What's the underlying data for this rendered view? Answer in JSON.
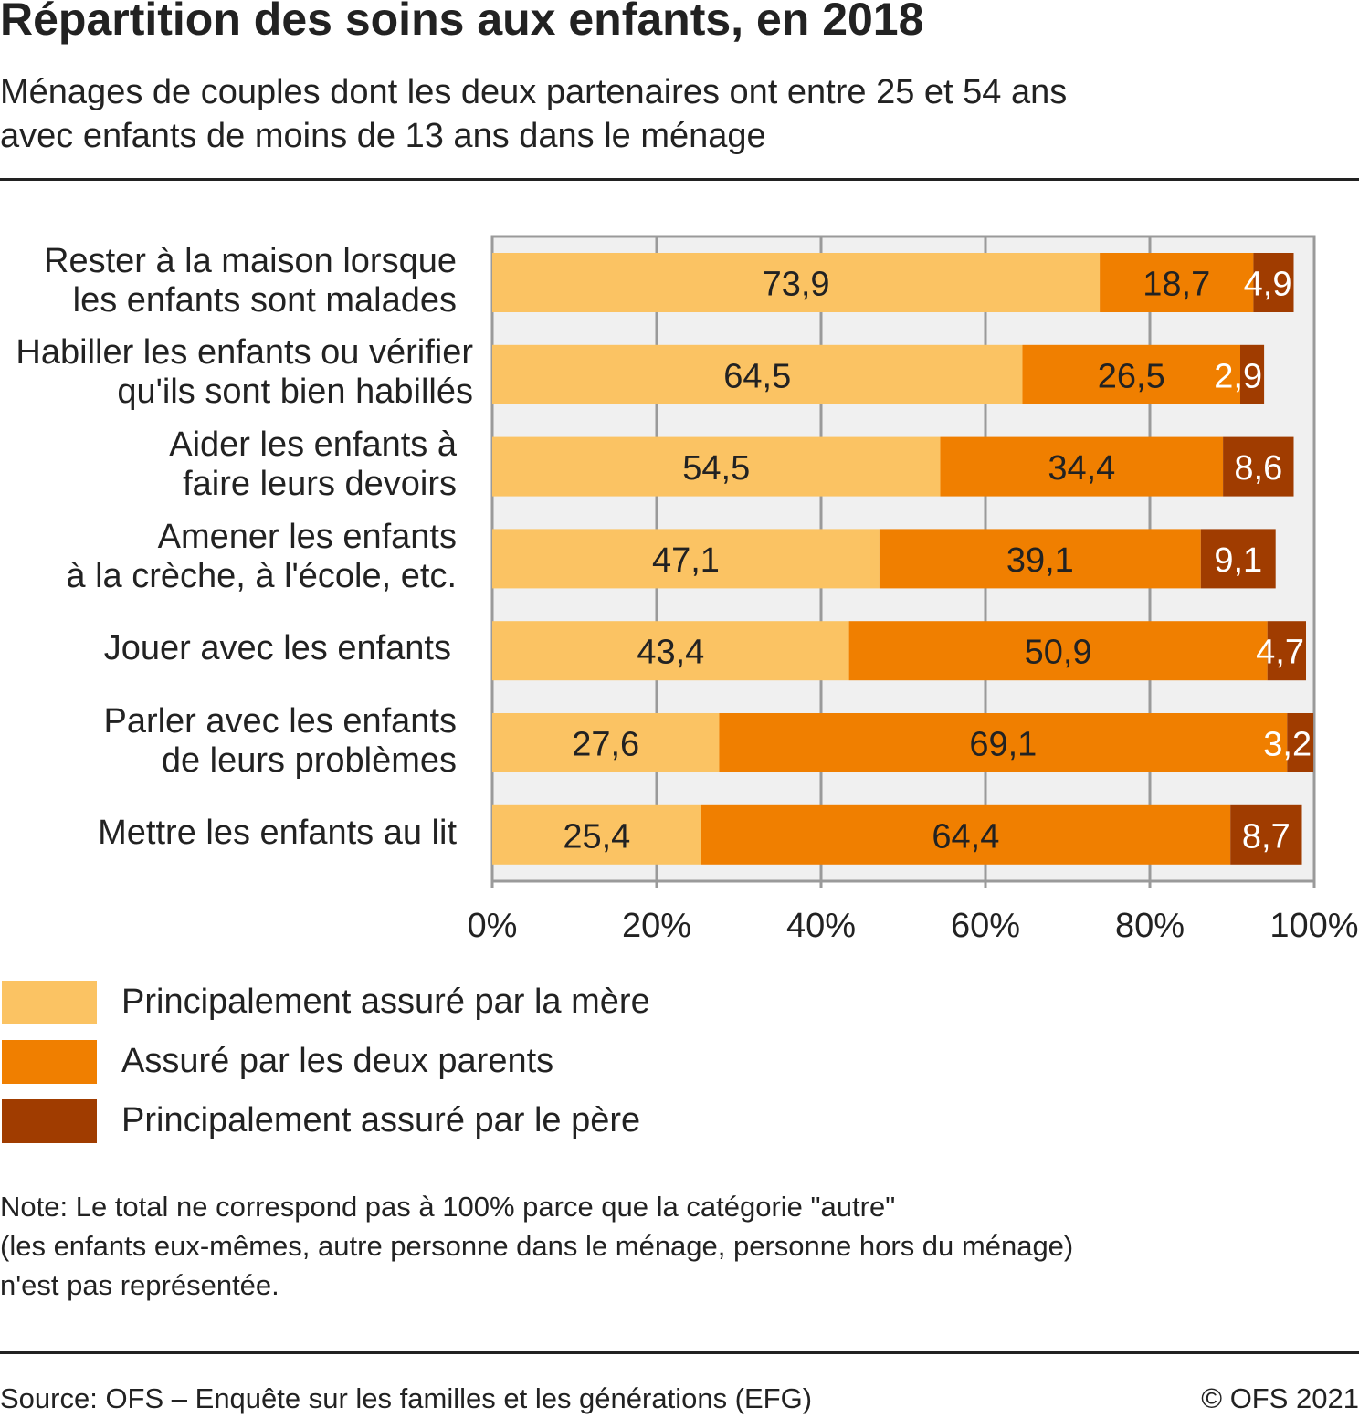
{
  "chart_data": {
    "type": "bar",
    "orientation": "horizontal",
    "stacked": true,
    "title": "Répartition des soins aux enfants, en 2018",
    "subtitle": [
      "Ménages de couples dont les deux partenaires ont entre 25 et 54 ans",
      "avec enfants de moins de 13 ans dans le ménage"
    ],
    "categories": [
      "Rester à la maison lorsque\nles enfants sont malades",
      "Habiller les enfants ou vérifier\nqu'ils sont bien habillés",
      "Aider les enfants à\nfaire leurs devoirs",
      "Amener les enfants\nà la crèche, à l'école, etc.",
      "Jouer avec les enfants",
      "Parler avec les enfants\nde leurs problèmes",
      "Mettre les enfants au lit"
    ],
    "series": [
      {
        "name": "Principalement assuré par la mère",
        "color": "#FBC363",
        "values": [
          73.9,
          64.5,
          54.5,
          47.1,
          43.4,
          27.6,
          25.4
        ],
        "labels": [
          "73,9",
          "64,5",
          "54,5",
          "47,1",
          "43,4",
          "27,6",
          "25,4"
        ]
      },
      {
        "name": "Assuré par les deux parents",
        "color": "#F07F00",
        "values": [
          18.7,
          26.5,
          34.4,
          39.1,
          50.9,
          69.1,
          64.4
        ],
        "labels": [
          "18,7",
          "26,5",
          "34,4",
          "39,1",
          "50,9",
          "69,1",
          "64,4"
        ]
      },
      {
        "name": "Principalement assuré par le père",
        "color": "#A03C00",
        "values": [
          4.9,
          2.9,
          8.6,
          9.1,
          4.7,
          3.2,
          8.7
        ],
        "labels": [
          "4,9",
          "2,9",
          "8,6",
          "9,1",
          "4,7",
          "3,2",
          "8,7"
        ]
      }
    ],
    "xlim": [
      0,
      100
    ],
    "xticks": [
      "0%",
      "20%",
      "40%",
      "60%",
      "80%",
      "100%"
    ],
    "grid": true,
    "legend_position": "bottom-left",
    "note": [
      "Note: Le total ne correspond pas à 100% parce que la catégorie \"autre\"",
      "(les enfants eux-mêmes, autre personne dans le ménage, personne hors du ménage)",
      "n'est pas représentée."
    ],
    "source": "Source: OFS – Enquête sur les familles et les générations (EFG)",
    "copyright": "© OFS 2021"
  }
}
